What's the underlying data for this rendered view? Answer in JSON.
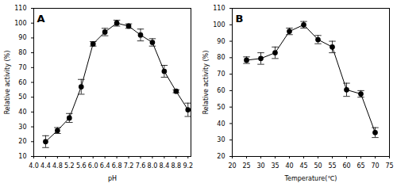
{
  "chart_data": [
    {
      "type": "line",
      "title": "A",
      "x_label": "pH",
      "y_label": "Relative activity (%)",
      "x": [
        4.4,
        4.8,
        5.2,
        5.6,
        6.0,
        6.4,
        6.8,
        7.2,
        7.6,
        8.0,
        8.4,
        8.8,
        9.2
      ],
      "values": [
        20,
        27.5,
        36,
        57,
        86,
        94,
        100,
        98,
        92,
        87,
        67.5,
        54,
        41.5
      ],
      "errors": [
        4,
        2,
        3,
        5,
        1.5,
        2.5,
        2,
        1.5,
        4,
        2.5,
        4,
        1,
        4.5
      ],
      "color": "#000000",
      "marker": "circle",
      "xlim": [
        4.0,
        9.3
      ],
      "xticks": [
        {
          "value": 4.0,
          "label": "4.0"
        },
        {
          "value": 4.4,
          "label": "4.4"
        },
        {
          "value": 4.8,
          "label": "4.8"
        },
        {
          "value": 5.2,
          "label": "5.2"
        },
        {
          "value": 5.6,
          "label": "5.6"
        },
        {
          "value": 6.0,
          "label": "6.0"
        },
        {
          "value": 6.4,
          "label": "6.4"
        },
        {
          "value": 6.8,
          "label": "6.8"
        },
        {
          "value": 7.2,
          "label": "7.2"
        },
        {
          "value": 7.6,
          "label": "7.6"
        },
        {
          "value": 8.0,
          "label": "8.0"
        },
        {
          "value": 8.4,
          "label": "8.4"
        },
        {
          "value": 8.8,
          "label": "8.8"
        },
        {
          "value": 9.2,
          "label": "9.2"
        }
      ],
      "ylim": [
        10,
        110
      ],
      "yticks": [
        10,
        20,
        30,
        40,
        50,
        60,
        70,
        80,
        90,
        100,
        110
      ]
    },
    {
      "type": "line",
      "title": "B",
      "x_label": "Temperature(℃)",
      "y_label": "Relative activity (%)",
      "x": [
        25,
        30,
        35,
        40,
        45,
        50,
        55,
        60,
        65,
        70
      ],
      "values": [
        78.5,
        79.5,
        83,
        96,
        100,
        91,
        86.5,
        60.5,
        58,
        34.5
      ],
      "errors": [
        2,
        3.5,
        3.5,
        2,
        2,
        2.5,
        3.5,
        4,
        2,
        3
      ],
      "color": "#000000",
      "marker": "circle",
      "xlim": [
        20,
        75
      ],
      "xticks": [
        20,
        25,
        30,
        35,
        40,
        45,
        50,
        55,
        60,
        65,
        70,
        75
      ],
      "ylim": [
        20,
        110
      ],
      "yticks": [
        20,
        30,
        40,
        50,
        60,
        70,
        80,
        90,
        100,
        110
      ]
    }
  ]
}
